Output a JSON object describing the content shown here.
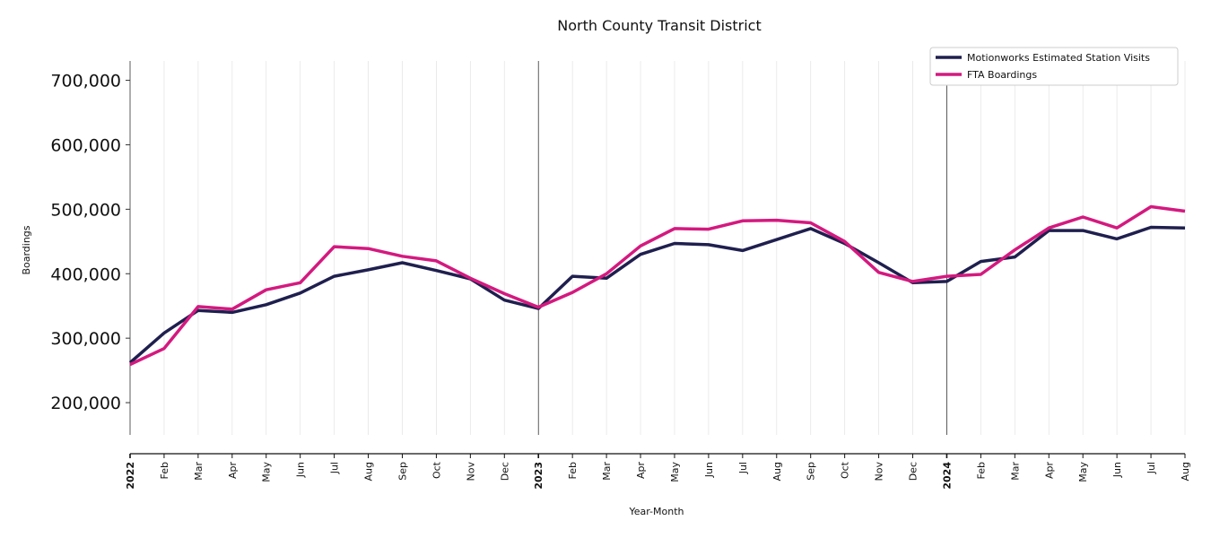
{
  "chart_data": {
    "type": "line",
    "title": "North County Transit District",
    "xlabel": "Year-Month",
    "ylabel": "Boardings",
    "x": [
      "2022",
      "Feb",
      "Mar",
      "Apr",
      "May",
      "Jun",
      "Jul",
      "Aug",
      "Sep",
      "Oct",
      "Nov",
      "Dec",
      "2023",
      "Feb",
      "Mar",
      "Apr",
      "May",
      "Jun",
      "Jul",
      "Aug",
      "Sep",
      "Oct",
      "Nov",
      "Dec",
      "2024",
      "Feb",
      "Mar",
      "Apr",
      "May",
      "Jun",
      "Jul",
      "Aug"
    ],
    "year_labels": [
      "2022",
      "2023",
      "2024"
    ],
    "ylim": [
      150000,
      730000
    ],
    "yticks": [
      200000,
      300000,
      400000,
      500000,
      600000,
      700000
    ],
    "ytick_labels": [
      "200,000",
      "300,000",
      "400,000",
      "500,000",
      "600,000",
      "700,000"
    ],
    "grid": "vertical",
    "legend_position": "top-right",
    "series": [
      {
        "name": "Motionworks Estimated Station Visits",
        "color": "#1f1f4f",
        "values": [
          262000,
          308000,
          343000,
          340000,
          352000,
          370000,
          396000,
          406000,
          417000,
          405000,
          392000,
          359000,
          346000,
          396000,
          393000,
          430000,
          447000,
          445000,
          436000,
          453000,
          470000,
          447000,
          417000,
          386000,
          388000,
          419000,
          426000,
          467000,
          467000,
          454000,
          472000,
          471000
        ]
      },
      {
        "name": "FTA Boardings",
        "color": "#d4197f",
        "values": [
          259000,
          284000,
          349000,
          345000,
          375000,
          386000,
          442000,
          439000,
          427000,
          420000,
          393000,
          369000,
          348000,
          371000,
          400000,
          443000,
          470000,
          469000,
          482000,
          483000,
          479000,
          450000,
          402000,
          388000,
          396000,
          399000,
          437000,
          471000,
          488000,
          471000,
          504000,
          497000
        ]
      }
    ]
  }
}
